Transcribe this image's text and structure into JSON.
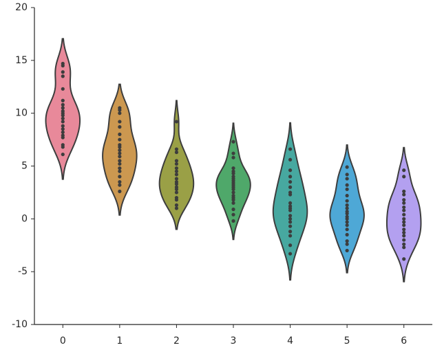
{
  "chart_data": {
    "type": "violin",
    "categories": [
      "0",
      "1",
      "2",
      "3",
      "4",
      "5",
      "6"
    ],
    "series": [
      {
        "color": "#e8899a",
        "values": [
          14.7,
          14.5,
          13.9,
          13.5,
          12.3,
          11.2,
          10.8,
          10.5,
          10.2,
          10,
          9.8,
          9.5,
          9.2,
          8.8,
          8.5,
          8.2,
          7.9,
          7.7,
          7,
          6.8,
          6.1
        ]
      },
      {
        "color": "#cc9850",
        "values": [
          10.5,
          10.3,
          10,
          9.2,
          8.7,
          8,
          7.5,
          7,
          6.8,
          6.5,
          6.2,
          5.9,
          5.5,
          5.2,
          4.8,
          4.5,
          4,
          3.5,
          3.2,
          2.6
        ]
      },
      {
        "color": "#9aa046",
        "values": [
          9.2,
          6.6,
          6.3,
          5.5,
          5.2,
          4.8,
          4.5,
          4.2,
          3.8,
          3.5,
          3.3,
          3,
          2.8,
          2.5,
          2,
          1.8,
          1.3,
          1
        ]
      },
      {
        "color": "#4fa86a",
        "values": [
          7.3,
          6.2,
          5.8,
          4.8,
          4.5,
          4.3,
          4,
          3.8,
          3.6,
          3.4,
          3.2,
          3,
          2.8,
          2.5,
          2.2,
          2,
          1.8,
          1.5,
          0.9,
          0.4,
          -0.2
        ]
      },
      {
        "color": "#47a8a0",
        "values": [
          6.6,
          5.6,
          4.6,
          4,
          3.5,
          3,
          2.5,
          2.3,
          1.5,
          1.2,
          1,
          0.8,
          0.3,
          0,
          -0.3,
          -0.7,
          -1.2,
          -1.6,
          -2.5,
          -3.3
        ]
      },
      {
        "color": "#4ea8d6",
        "values": [
          4.9,
          4.2,
          3.8,
          3.2,
          2.8,
          2.2,
          1.7,
          1.3,
          1,
          0.7,
          0.5,
          0.2,
          0,
          -0.3,
          -0.6,
          -1,
          -1.5,
          -2.1,
          -2.4,
          -3
        ]
      },
      {
        "color": "#b3a0f0",
        "values": [
          4.6,
          4,
          2.6,
          2.3,
          1.8,
          1.5,
          1.1,
          0.8,
          0.4,
          0,
          -0.3,
          -0.6,
          -1,
          -1.3,
          -1.6,
          -2,
          -2.4,
          -2.7,
          -3.8
        ]
      }
    ],
    "ylim": [
      -10,
      20
    ],
    "yticks": [
      -10,
      -5,
      0,
      5,
      10,
      15,
      20
    ]
  }
}
